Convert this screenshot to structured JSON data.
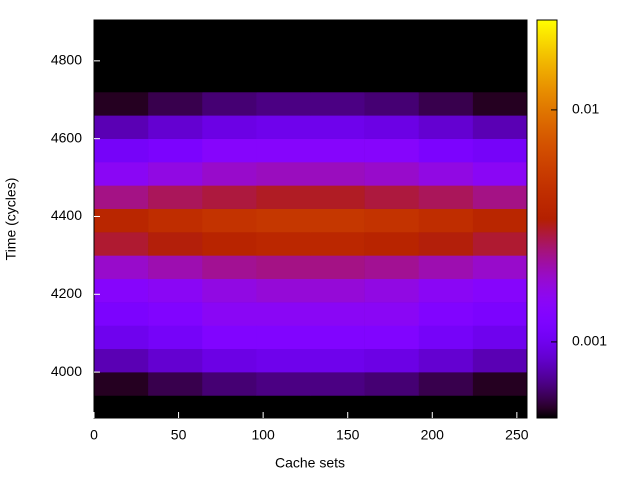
{
  "chart_data": {
    "type": "heatmap",
    "x_label": "Cache sets",
    "y_label": "Time (cycles)",
    "x": [
      0,
      32,
      64,
      96,
      128,
      160,
      192,
      224,
      256
    ],
    "y": [
      3880,
      3940,
      4000,
      4060,
      4120,
      4180,
      4240,
      4300,
      4360,
      4420,
      4480,
      4540,
      4600,
      4660,
      4720,
      4780,
      4840,
      4900
    ],
    "z": [
      [
        0.00034,
        0.00038,
        0.00042,
        0.00044,
        0.00044,
        0.00042,
        0.00038,
        0.00034
      ],
      [
        0.00051,
        0.00057,
        0.00063,
        0.00066,
        0.00066,
        0.00063,
        0.00057,
        0.00051
      ],
      [
        0.00077,
        0.00086,
        0.00095,
        0.00099,
        0.00099,
        0.00095,
        0.00086,
        0.00077
      ],
      [
        0.001,
        0.0011,
        0.0013,
        0.0013,
        0.0013,
        0.0013,
        0.0011,
        0.001
      ],
      [
        0.0012,
        0.0013,
        0.0015,
        0.0015,
        0.0015,
        0.0015,
        0.0013,
        0.0012
      ],
      [
        0.0014,
        0.0015,
        0.0017,
        0.0018,
        0.0018,
        0.0017,
        0.0015,
        0.0014
      ],
      [
        0.0019,
        0.0021,
        0.0023,
        0.0024,
        0.0024,
        0.0023,
        0.0021,
        0.0019
      ],
      [
        0.003,
        0.0033,
        0.0037,
        0.0039,
        0.0039,
        0.0037,
        0.0033,
        0.003
      ],
      [
        0.0038,
        0.0043,
        0.0047,
        0.005,
        0.005,
        0.0047,
        0.0043,
        0.0038
      ],
      [
        0.0024,
        0.0027,
        0.0029,
        0.0031,
        0.0031,
        0.0029,
        0.0027,
        0.0024
      ],
      [
        0.0015,
        0.0017,
        0.0019,
        0.002,
        0.002,
        0.0019,
        0.0017,
        0.0015
      ],
      [
        0.0011,
        0.0012,
        0.0014,
        0.0014,
        0.0014,
        0.0014,
        0.0012,
        0.0011
      ],
      [
        0.00077,
        0.00086,
        0.00095,
        0.00099,
        0.00099,
        0.00095,
        0.00086,
        0.00077
      ],
      [
        0.00051,
        0.00057,
        0.00063,
        0.00066,
        0.00066,
        0.00063,
        0.00057,
        0.00051
      ],
      [
        0.00034,
        0.00038,
        0.00042,
        0.00044,
        0.00044,
        0.00042,
        0.00038,
        0.00034
      ],
      [
        0.00026,
        0.00029,
        0.00032,
        0.00033,
        0.00033,
        0.00032,
        0.00029,
        0.00026
      ],
      [
        0.00026,
        0.00029,
        0.00032,
        0.00033,
        0.00033,
        0.00032,
        0.00029,
        0.00026
      ]
    ],
    "xlim": [
      0,
      256
    ],
    "xticks": [
      0,
      50,
      100,
      150,
      200,
      250
    ],
    "ylim": [
      3882,
      4905
    ],
    "yticks": [
      4000,
      4200,
      4400,
      4600,
      4800
    ],
    "zlim": [
      0.00047,
      0.0244
    ],
    "zticks": [
      0.001,
      0.01
    ],
    "zscale": "log"
  }
}
